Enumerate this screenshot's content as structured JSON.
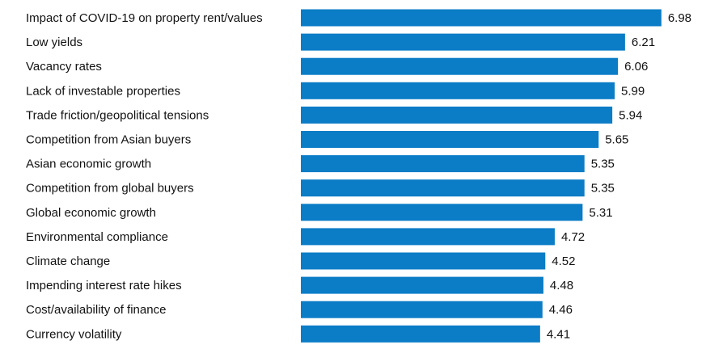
{
  "chart_data": {
    "type": "barh",
    "categories": [
      "Impact of COVID-19 on property rent/values",
      "Low yields",
      "Vacancy rates",
      "Lack of investable properties",
      "Trade friction/geopolitical tensions",
      "Competition from Asian buyers",
      "Asian economic growth",
      "Competition from global buyers",
      "Global economic growth",
      "Environmental compliance",
      "Climate change",
      "Impending interest rate hikes",
      "Cost/availability of finance",
      "Currency volatility"
    ],
    "values": [
      6.98,
      6.21,
      6.06,
      5.99,
      5.94,
      5.65,
      5.35,
      5.35,
      5.31,
      4.72,
      4.52,
      4.48,
      4.46,
      4.41
    ],
    "color": "#0b7cc6",
    "xlim": [
      -0.66,
      7.6
    ]
  }
}
